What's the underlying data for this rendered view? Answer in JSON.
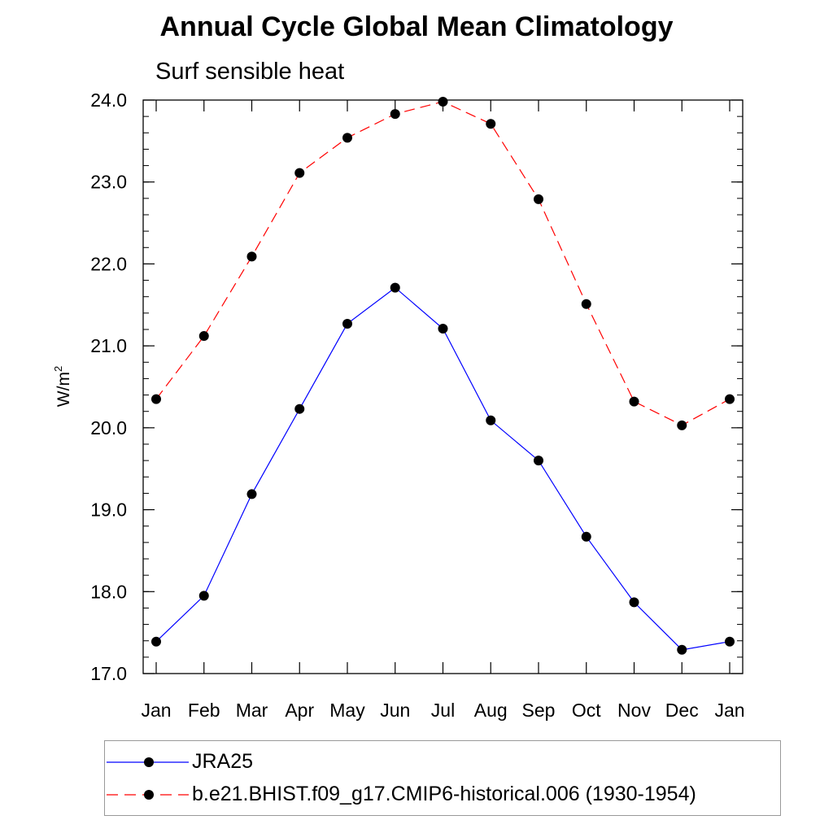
{
  "chart_data": {
    "type": "line",
    "title": "Annual Cycle Global Mean Climatology",
    "subtitle": "Surf sensible heat",
    "ylabel": "W/m",
    "ylabel_superscript": "2",
    "xlabel": "",
    "categories": [
      "Jan",
      "Feb",
      "Mar",
      "Apr",
      "May",
      "Jun",
      "Jul",
      "Aug",
      "Sep",
      "Oct",
      "Nov",
      "Dec",
      "Jan"
    ],
    "ylim": [
      17.0,
      24.0
    ],
    "yticks": [
      "17.0",
      "18.0",
      "19.0",
      "20.0",
      "21.0",
      "22.0",
      "23.0",
      "24.0"
    ],
    "grid": false,
    "legend_position": "bottom",
    "series": [
      {
        "name": "JRA25",
        "color": "#0000ff",
        "dash": "solid",
        "marker": "circle",
        "values": [
          17.39,
          17.95,
          19.19,
          20.23,
          21.27,
          21.71,
          21.21,
          20.09,
          19.6,
          18.67,
          17.87,
          17.29,
          17.39
        ]
      },
      {
        "name": "b.e21.BHIST.f09_g17.CMIP6-historical.006 (1930-1954)",
        "color": "#ff0000",
        "dash": "dashed",
        "marker": "circle",
        "values": [
          20.35,
          21.12,
          22.09,
          23.11,
          23.54,
          23.83,
          23.98,
          23.71,
          22.79,
          21.51,
          20.32,
          20.03,
          20.35
        ]
      }
    ]
  }
}
